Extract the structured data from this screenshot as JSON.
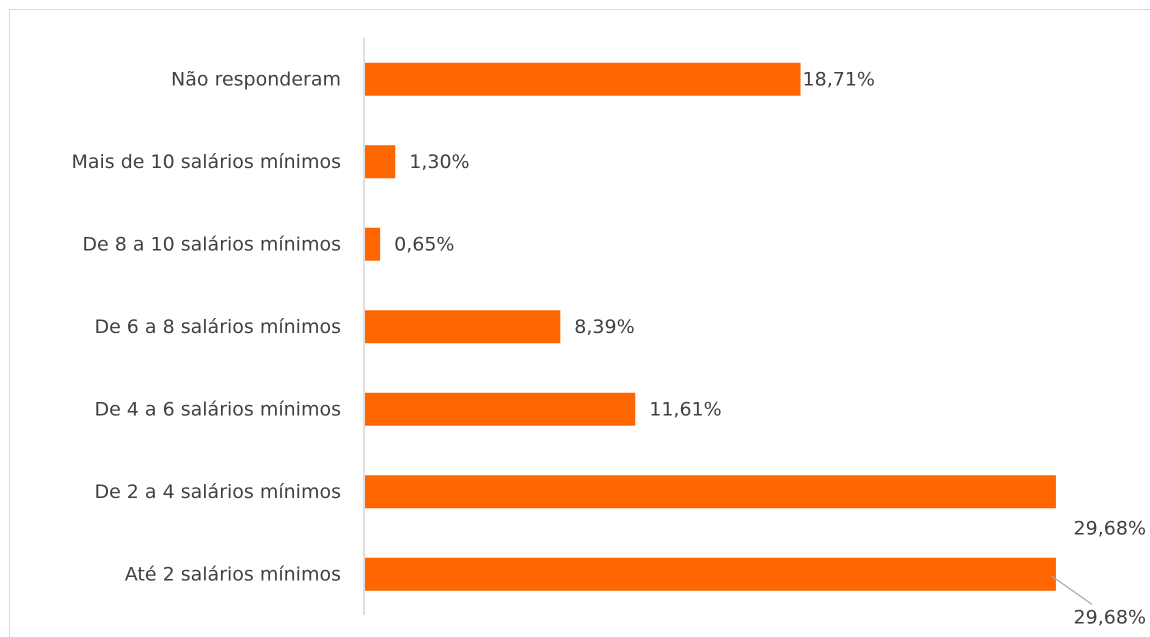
{
  "chart_data": {
    "type": "bar",
    "orientation": "horizontal",
    "categories": [
      "Não responderam",
      "Mais de 10 salários mínimos",
      "De 8 a 10 salários mínimos",
      "De 6 a 8 salários mínimos",
      "De 4 a 6 salários mínimos",
      "De 2 a 4 salários mínimos",
      "Até 2 salários mínimos"
    ],
    "values": [
      18.71,
      1.3,
      0.65,
      8.39,
      11.61,
      29.68,
      29.68
    ],
    "value_labels": [
      "18,71%",
      "1,30%",
      "0,65%",
      "8,39%",
      "11,61%",
      "29,68%",
      "29,68%"
    ],
    "xlim": [
      0,
      30.5
    ],
    "grid": false,
    "legend": "none",
    "bar_color": "#ff6600"
  }
}
